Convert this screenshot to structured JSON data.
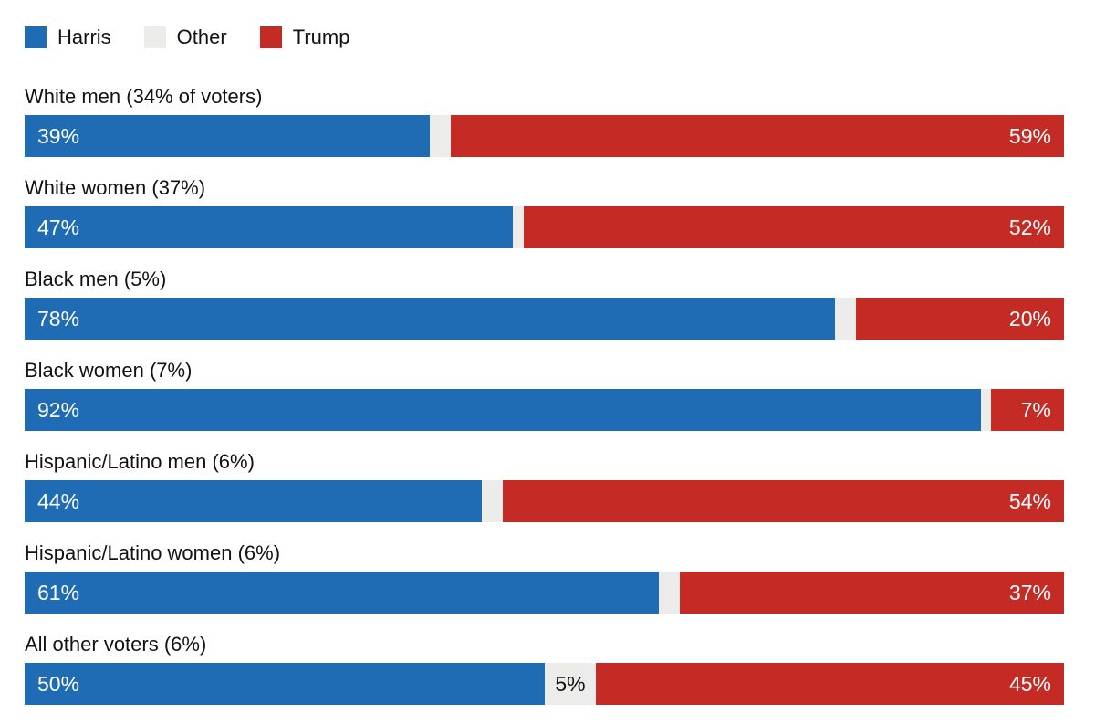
{
  "colors": {
    "harris": "#1f6cb4",
    "other": "#ececea",
    "trump": "#c32b24",
    "label_text": "#121212",
    "value_text": "#ffffff"
  },
  "legend": [
    {
      "label": "Harris",
      "color": "#1f6cb4"
    },
    {
      "label": "Other",
      "color": "#ececea"
    },
    {
      "label": "Trump",
      "color": "#c32b24"
    }
  ],
  "chart_data": {
    "type": "bar",
    "orientation": "horizontal",
    "stacked": true,
    "unit": "percent",
    "xlim": [
      0,
      100
    ],
    "grid": false,
    "legend_position": "top-left",
    "categories": [
      "White men (34% of voters)",
      "White women (37%)",
      "Black men (5%)",
      "Black women (7%)",
      "Hispanic/Latino men (6%)",
      "Hispanic/Latino women (6%)",
      "All other voters (6%)"
    ],
    "series": [
      {
        "name": "Harris",
        "values": [
          39,
          47,
          78,
          92,
          44,
          61,
          50
        ]
      },
      {
        "name": "Other",
        "values": [
          2,
          1,
          2,
          1,
          2,
          2,
          5
        ]
      },
      {
        "name": "Trump",
        "values": [
          59,
          52,
          20,
          7,
          54,
          37,
          45
        ]
      }
    ],
    "rows": [
      {
        "label": "White men (34% of voters)",
        "harris": 39,
        "other": 2,
        "trump": 59,
        "harris_text": "39%",
        "other_text": "",
        "trump_text": "59%"
      },
      {
        "label": "White women (37%)",
        "harris": 47,
        "other": 1,
        "trump": 52,
        "harris_text": "47%",
        "other_text": "",
        "trump_text": "52%"
      },
      {
        "label": "Black men (5%)",
        "harris": 78,
        "other": 2,
        "trump": 20,
        "harris_text": "78%",
        "other_text": "",
        "trump_text": "20%"
      },
      {
        "label": "Black women (7%)",
        "harris": 92,
        "other": 1,
        "trump": 7,
        "harris_text": "92%",
        "other_text": "",
        "trump_text": "7%"
      },
      {
        "label": "Hispanic/Latino men (6%)",
        "harris": 44,
        "other": 2,
        "trump": 54,
        "harris_text": "44%",
        "other_text": "",
        "trump_text": "54%"
      },
      {
        "label": "Hispanic/Latino women (6%)",
        "harris": 61,
        "other": 2,
        "trump": 37,
        "harris_text": "61%",
        "other_text": "",
        "trump_text": "37%"
      },
      {
        "label": "All other voters (6%)",
        "harris": 50,
        "other": 5,
        "trump": 45,
        "harris_text": "50%",
        "other_text": "5%",
        "trump_text": "45%"
      }
    ]
  }
}
